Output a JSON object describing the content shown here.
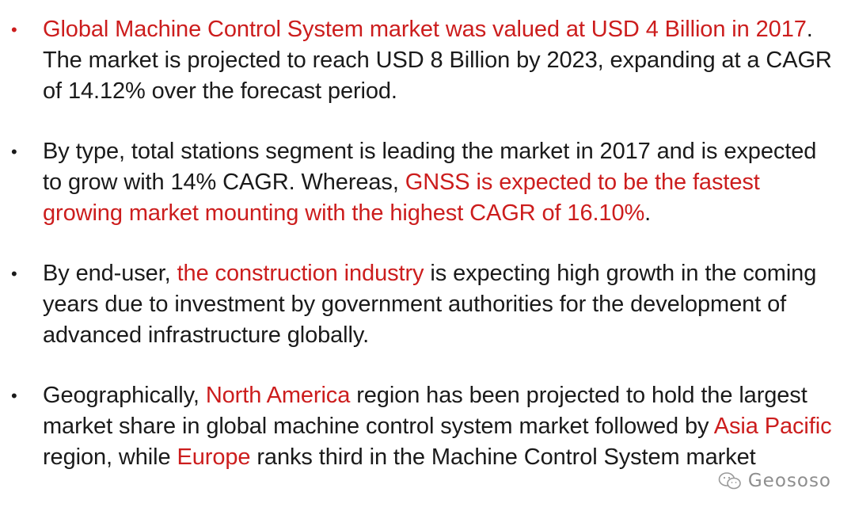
{
  "bullets": [
    {
      "marker": "•",
      "marker_color": "#cc1d1d",
      "segments": [
        {
          "text": "Global Machine Control System market was valued at USD 4 Billion in 2017",
          "highlight": true
        },
        {
          "text": ". The market is projected to reach USD 8 Billion by 2023, expanding at a CAGR of 14.12% over the forecast period.",
          "highlight": false
        }
      ]
    },
    {
      "marker": "•",
      "marker_color": "#1a1a1a",
      "segments": [
        {
          "text": "By type, total stations segment is leading the market in 2017 and is expected to grow with 14% CAGR. Whereas, ",
          "highlight": false
        },
        {
          "text": "GNSS is expected to be the fastest growing market mounting with the highest CAGR of 16.10%",
          "highlight": true
        },
        {
          "text": ".",
          "highlight": false
        }
      ]
    },
    {
      "marker": "•",
      "marker_color": "#1a1a1a",
      "segments": [
        {
          "text": "By end-user, ",
          "highlight": false
        },
        {
          "text": "the construction industry",
          "highlight": true
        },
        {
          "text": " is expecting high growth in the coming years due to investment by government authorities for the development of advanced infrastructure globally.",
          "highlight": false
        }
      ]
    },
    {
      "marker": "•",
      "marker_color": "#1a1a1a",
      "segments": [
        {
          "text": "Geographically, ",
          "highlight": false
        },
        {
          "text": "North America",
          "highlight": true
        },
        {
          "text": " region has been projected to hold the largest market share in global machine control system market followed by ",
          "highlight": false
        },
        {
          "text": "Asia Pacific",
          "highlight": true
        },
        {
          "text": " region, while ",
          "highlight": false
        },
        {
          "text": "Europe",
          "highlight": true
        },
        {
          "text": " ranks third in the Machine Control System market",
          "highlight": false
        }
      ]
    }
  ],
  "watermark": {
    "text": "Geososo",
    "icon": "wechat-icon"
  },
  "colors": {
    "highlight": "#cc1d1d",
    "body_text": "#1a1a1a",
    "watermark": "#8e8e8e"
  }
}
